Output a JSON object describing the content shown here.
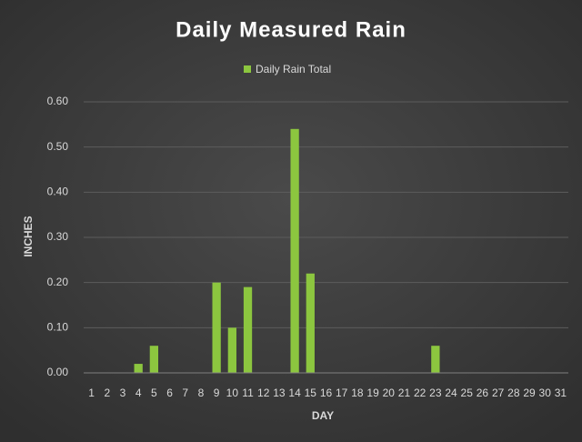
{
  "chart_data": {
    "type": "bar",
    "title": "Daily Measured Rain",
    "x_label": "DAY",
    "y_label": "INCHES",
    "categories": [
      "1",
      "2",
      "3",
      "4",
      "5",
      "6",
      "7",
      "8",
      "9",
      "10",
      "11",
      "12",
      "13",
      "14",
      "15",
      "16",
      "17",
      "18",
      "19",
      "20",
      "21",
      "22",
      "23",
      "24",
      "25",
      "26",
      "27",
      "28",
      "29",
      "30",
      "31"
    ],
    "series": [
      {
        "name": "Daily Rain Total",
        "color": "#8cc63f",
        "values": [
          0,
          0,
          0,
          0.02,
          0.06,
          0,
          0,
          0,
          0.2,
          0.1,
          0.19,
          0,
          0,
          0.54,
          0.22,
          0,
          0,
          0,
          0,
          0,
          0,
          0,
          0.06,
          0,
          0,
          0,
          0,
          0,
          0,
          0,
          0
        ]
      }
    ],
    "ylim": [
      0,
      0.6
    ],
    "yticks": [
      {
        "value": 0,
        "label": "0.00"
      },
      {
        "value": 0.1,
        "label": "0.10"
      },
      {
        "value": 0.2,
        "label": "0.20"
      },
      {
        "value": 0.3,
        "label": "0.30"
      },
      {
        "value": 0.4,
        "label": "0.40"
      },
      {
        "value": 0.5,
        "label": "0.50"
      },
      {
        "value": 0.6,
        "label": "0.60"
      }
    ],
    "grid": true,
    "legend": "top"
  }
}
